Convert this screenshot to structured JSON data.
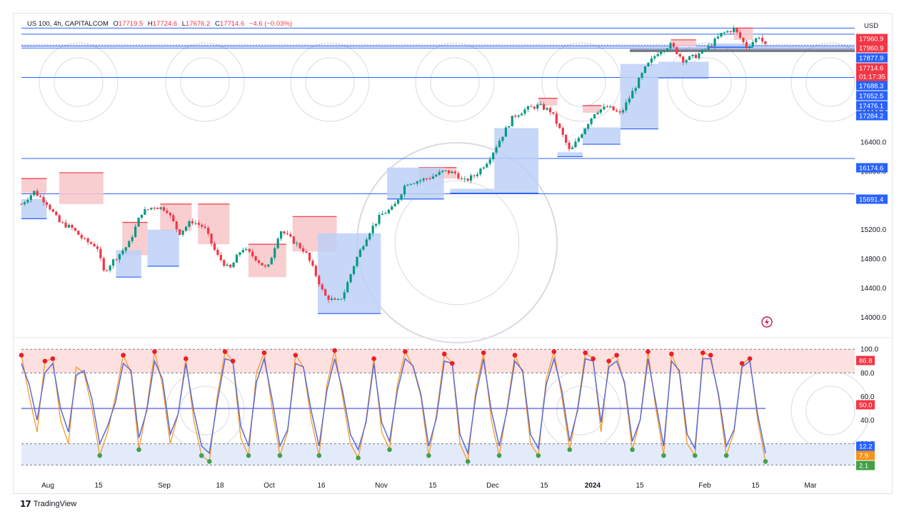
{
  "legend": {
    "symbol": "US 100, 4h, CAPITALCOM",
    "open_label": "O",
    "open": "17719.5",
    "high_label": "H",
    "high": "17724.6",
    "low_label": "L",
    "low": "17676.2",
    "close_label": "C",
    "close": "17714.6",
    "change": "−4.6 (−0.03%)"
  },
  "currency": "USD",
  "footer": {
    "brand": "TradingView"
  },
  "colors": {
    "up": "#089981",
    "down": "#f23645",
    "hline": "#2962ff",
    "res_fill": "#f7c5c9",
    "sup_fill": "#bcd0f7",
    "k_line": "#f7931a",
    "d_line": "#5b6bd6",
    "mid_line": "#f23645"
  },
  "chart_data": [
    {
      "type": "line",
      "series_kind": "candlestick",
      "ylim": [
        13750,
        18150
      ],
      "yticks": [
        "16800.0",
        "16400.0",
        "16000.0",
        "15600.0",
        "15200.0",
        "14800.0",
        "14400.0",
        "14000.0"
      ],
      "xticks": [
        "Aug",
        "15",
        "Sep",
        "18",
        "Oct",
        "16",
        "Nov",
        "15",
        "Dec",
        "15",
        "2024",
        "15",
        "Feb",
        "15",
        "Mar"
      ],
      "close_path": [
        {
          "x": 0,
          "y": 15550
        },
        {
          "x": 2,
          "y": 15720
        },
        {
          "x": 4,
          "y": 15570
        },
        {
          "x": 6,
          "y": 15300
        },
        {
          "x": 8,
          "y": 15220
        },
        {
          "x": 10,
          "y": 15050
        },
        {
          "x": 12,
          "y": 14970
        },
        {
          "x": 13,
          "y": 14620
        },
        {
          "x": 15,
          "y": 14820
        },
        {
          "x": 17,
          "y": 15000
        },
        {
          "x": 19,
          "y": 15430
        },
        {
          "x": 21,
          "y": 15520
        },
        {
          "x": 23,
          "y": 15480
        },
        {
          "x": 25,
          "y": 15150
        },
        {
          "x": 27,
          "y": 15320
        },
        {
          "x": 29,
          "y": 15230
        },
        {
          "x": 31,
          "y": 14850
        },
        {
          "x": 33,
          "y": 14650
        },
        {
          "x": 35,
          "y": 14950
        },
        {
          "x": 37,
          "y": 14820
        },
        {
          "x": 39,
          "y": 14650
        },
        {
          "x": 41,
          "y": 15200
        },
        {
          "x": 43,
          "y": 15050
        },
        {
          "x": 45,
          "y": 14900
        },
        {
          "x": 47,
          "y": 14520
        },
        {
          "x": 48,
          "y": 14300
        },
        {
          "x": 50,
          "y": 14200
        },
        {
          "x": 51,
          "y": 14300
        },
        {
          "x": 53,
          "y": 14780
        },
        {
          "x": 55,
          "y": 15150
        },
        {
          "x": 57,
          "y": 15400
        },
        {
          "x": 59,
          "y": 15500
        },
        {
          "x": 61,
          "y": 15840
        },
        {
          "x": 63,
          "y": 15870
        },
        {
          "x": 65,
          "y": 15920
        },
        {
          "x": 67,
          "y": 16000
        },
        {
          "x": 69,
          "y": 15970
        },
        {
          "x": 70,
          "y": 15850
        },
        {
          "x": 72,
          "y": 15950
        },
        {
          "x": 74,
          "y": 16150
        },
        {
          "x": 76,
          "y": 16450
        },
        {
          "x": 78,
          "y": 16750
        },
        {
          "x": 80,
          "y": 16850
        },
        {
          "x": 82,
          "y": 16900
        },
        {
          "x": 84,
          "y": 16820
        },
        {
          "x": 86,
          "y": 16460
        },
        {
          "x": 87,
          "y": 16260
        },
        {
          "x": 89,
          "y": 16550
        },
        {
          "x": 91,
          "y": 16820
        },
        {
          "x": 93,
          "y": 16880
        },
        {
          "x": 95,
          "y": 16780
        },
        {
          "x": 97,
          "y": 17100
        },
        {
          "x": 99,
          "y": 17420
        },
        {
          "x": 101,
          "y": 17640
        },
        {
          "x": 103,
          "y": 17730
        },
        {
          "x": 105,
          "y": 17520
        },
        {
          "x": 107,
          "y": 17580
        },
        {
          "x": 109,
          "y": 17700
        },
        {
          "x": 111,
          "y": 17880
        },
        {
          "x": 113,
          "y": 17950
        },
        {
          "x": 115,
          "y": 17700
        },
        {
          "x": 117,
          "y": 17850
        },
        {
          "x": 118,
          "y": 17714.6
        }
      ],
      "price_labels": [
        {
          "value": "17960.9",
          "kind": "red"
        },
        {
          "value": "17960.9",
          "kind": "red"
        },
        {
          "value": "17877.9",
          "kind": "blue"
        },
        {
          "value": "17714.6",
          "kind": "red"
        },
        {
          "value": "01:17:35",
          "kind": "red"
        },
        {
          "value": "17688.3",
          "kind": "blue"
        },
        {
          "value": "17652.5",
          "kind": "blue"
        },
        {
          "value": "17476.1",
          "kind": "blue"
        },
        {
          "value": "17284.2",
          "kind": "blue"
        },
        {
          "value": "16174.6",
          "kind": "blue"
        },
        {
          "value": "15691.4",
          "kind": "blue"
        }
      ],
      "horizontal_levels": [
        18360,
        17960.9,
        17877.9,
        17714.6,
        17688.3,
        17284.2,
        16174.6,
        15691.4
      ]
    },
    {
      "type": "line",
      "series_kind": "stochastic-oscillator",
      "ylim": [
        -2,
        108
      ],
      "yticks": [
        "100.0",
        "80.0",
        "60.0",
        "40.0",
        "20.0"
      ],
      "bands": {
        "upper": 80,
        "lower": 20,
        "upper_top": 100,
        "lower_bottom": 2
      },
      "mid": 50,
      "series": [
        {
          "values": [
            95,
            60,
            30,
            90,
            92,
            40,
            20,
            85,
            80,
            50,
            10,
            30,
            60,
            95,
            80,
            15,
            50,
            98,
            70,
            20,
            45,
            92,
            40,
            10,
            5,
            60,
            98,
            90,
            25,
            10,
            80,
            97,
            50,
            10,
            30,
            95,
            85,
            40,
            10,
            70,
            99,
            60,
            20,
            8,
            40,
            92,
            30,
            15,
            70,
            98,
            85,
            60,
            10,
            45,
            96,
            88,
            20,
            5,
            65,
            97,
            40,
            10,
            50,
            95,
            80,
            20,
            10,
            75,
            98,
            60,
            15,
            50,
            97,
            92,
            30,
            90,
            95,
            70,
            15,
            40,
            98,
            50,
            10,
            96,
            80,
            20,
            10,
            97,
            95,
            60,
            10,
            30,
            88,
            92,
            40,
            5
          ]
        },
        {
          "values": [
            88,
            70,
            40,
            80,
            88,
            50,
            30,
            78,
            82,
            58,
            20,
            35,
            55,
            88,
            82,
            25,
            48,
            90,
            75,
            28,
            45,
            88,
            48,
            18,
            12,
            55,
            92,
            90,
            35,
            18,
            72,
            92,
            58,
            18,
            32,
            88,
            85,
            48,
            18,
            65,
            92,
            65,
            28,
            15,
            38,
            88,
            38,
            22,
            65,
            92,
            86,
            62,
            18,
            42,
            90,
            88,
            28,
            12,
            60,
            92,
            48,
            18,
            48,
            90,
            82,
            28,
            16,
            70,
            92,
            65,
            22,
            48,
            92,
            90,
            38,
            85,
            90,
            72,
            22,
            40,
            92,
            55,
            18,
            90,
            82,
            28,
            16,
            92,
            92,
            62,
            18,
            32,
            85,
            90,
            45,
            12
          ]
        }
      ],
      "price_labels": [
        {
          "value": "86.8",
          "kind": "red"
        },
        {
          "value": "50.0",
          "kind": "red"
        },
        {
          "value": "12.2",
          "kind": "blue"
        },
        {
          "value": "7.9",
          "kind": "orange"
        },
        {
          "value": "2.1",
          "kind": "green"
        }
      ]
    }
  ]
}
